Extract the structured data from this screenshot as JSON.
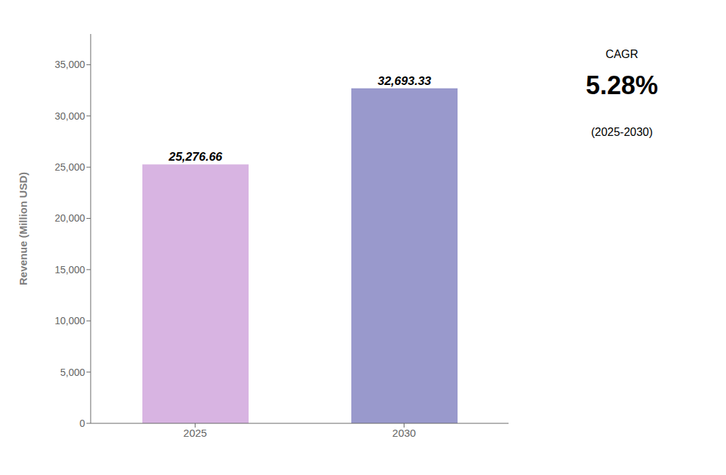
{
  "chart_data": {
    "type": "bar",
    "categories": [
      "2025",
      "2030"
    ],
    "values": [
      25276.66,
      32693.33
    ],
    "value_labels": [
      "25,276.66",
      "32,693.33"
    ],
    "colors": [
      "#D8B4E2",
      "#9999CC"
    ],
    "ylabel": "Revenue (Million USD)",
    "ylim": [
      0,
      38000
    ],
    "yticks": [
      0,
      {
        "value": 5000,
        "label": "5,000"
      },
      {
        "value": 10000,
        "label": "10,000"
      },
      {
        "value": 15000,
        "label": "15,000"
      },
      {
        "value": 20000,
        "label": "20,000"
      },
      {
        "value": 25000,
        "label": "25,000"
      },
      {
        "value": 30000,
        "label": "30,000"
      },
      {
        "value": 35000,
        "label": "35,000"
      }
    ],
    "grid": false,
    "data_labels": true,
    "annotations": [
      "CAGR",
      "5.28%",
      "(2025-2030)"
    ]
  }
}
